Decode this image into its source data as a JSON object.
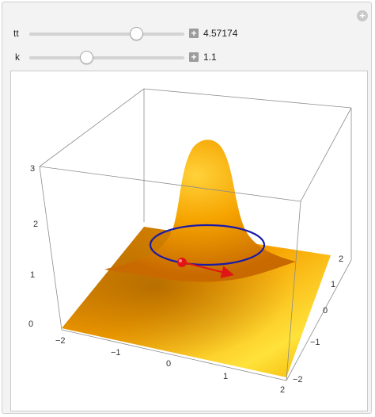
{
  "controls": [
    {
      "label": "tt",
      "value": "4.57174",
      "fraction": 0.7
    },
    {
      "label": "k",
      "value": "1.1",
      "fraction": 0.37
    }
  ],
  "corner_button": "+",
  "plot": {
    "type": "3d-surface",
    "surface_color": "#f5a300",
    "curve_color": "#1a1aa8",
    "point_color": "#e01515",
    "arrow_color": "#e01515",
    "z_ticks": [
      "0",
      "1",
      "2",
      "3"
    ],
    "x_ticks": [
      "−2",
      "−1",
      "0",
      "1",
      "2"
    ],
    "y_ticks": [
      "−2",
      "−1",
      "0",
      "1",
      "2"
    ]
  }
}
